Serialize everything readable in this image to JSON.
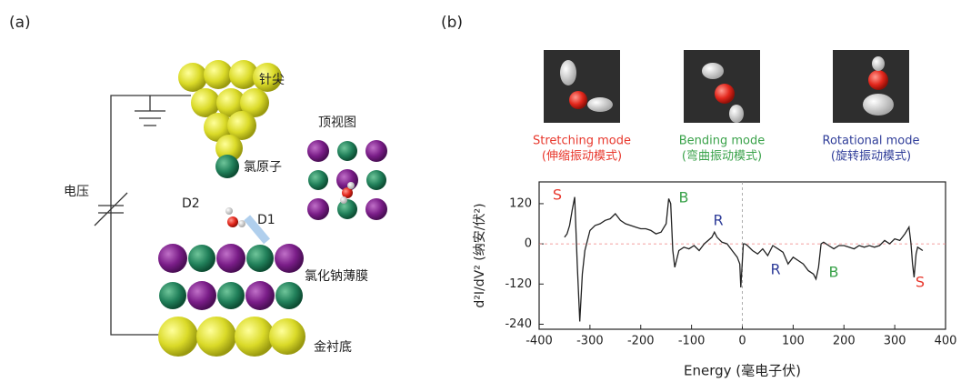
{
  "panel_a": {
    "label": "(a)",
    "tip": "针尖",
    "top_view": "顶视图",
    "chlorine": "氯原子",
    "voltage": "电压",
    "d2": "D2",
    "d1": "D1",
    "film": "氯化钠薄膜",
    "substrate": "金衬底"
  },
  "panel_b": {
    "label": "(b)",
    "modes": [
      {
        "name": "Stretching mode",
        "cn": "(伸缩振动模式)",
        "color": "#e8372c"
      },
      {
        "name": "Bending mode",
        "cn": "(弯曲振动模式)",
        "color": "#3aa24a"
      },
      {
        "name": "Rotational mode",
        "cn": "(旋转振动模式)",
        "color": "#2f3d99"
      }
    ]
  },
  "chart_data": {
    "type": "line",
    "x_label": "Energy (毫电子伏)",
    "y_label": "d²I/dV² (纳安/伏²)",
    "x": [
      -350,
      -345,
      -340,
      -335,
      -330,
      -325,
      -320,
      -315,
      -310,
      -300,
      -290,
      -280,
      -270,
      -260,
      -250,
      -240,
      -230,
      -220,
      -210,
      -200,
      -190,
      -180,
      -170,
      -160,
      -150,
      -145,
      -141,
      -137,
      -133,
      -125,
      -115,
      -105,
      -95,
      -85,
      -75,
      -60,
      -55,
      -50,
      -40,
      -30,
      -20,
      -10,
      -5,
      -3,
      2,
      5,
      10,
      20,
      30,
      40,
      50,
      55,
      60,
      70,
      80,
      90,
      100,
      110,
      120,
      130,
      140,
      145,
      150,
      155,
      160,
      170,
      180,
      190,
      200,
      210,
      220,
      230,
      240,
      250,
      260,
      270,
      280,
      290,
      300,
      310,
      320,
      328,
      332,
      335,
      338,
      342,
      345,
      350,
      355
    ],
    "values": [
      20,
      30,
      55,
      100,
      140,
      -60,
      -232,
      -90,
      -20,
      40,
      55,
      60,
      70,
      75,
      90,
      70,
      60,
      55,
      50,
      45,
      45,
      40,
      30,
      35,
      60,
      135,
      120,
      -20,
      -70,
      -20,
      -10,
      -15,
      -5,
      -20,
      0,
      20,
      35,
      20,
      5,
      0,
      -20,
      -40,
      -60,
      -130,
      0,
      0,
      -5,
      -20,
      -30,
      -15,
      -35,
      -20,
      -5,
      -15,
      -25,
      -60,
      -40,
      -50,
      -60,
      -80,
      -90,
      -105,
      -70,
      0,
      5,
      -5,
      -15,
      -5,
      -5,
      -10,
      -15,
      -5,
      -10,
      -5,
      -10,
      -5,
      10,
      0,
      15,
      10,
      30,
      50,
      0,
      -60,
      -100,
      -30,
      -10,
      -15,
      -20
    ],
    "color": "#222222",
    "xlim": [
      -400,
      400
    ],
    "ylim": [
      -255,
      185
    ],
    "xticks": [
      -400,
      -300,
      -200,
      -100,
      0,
      100,
      200,
      300,
      400
    ],
    "yticks": [
      120,
      0,
      -120,
      -240
    ],
    "zero_lines": true,
    "annotations": [
      {
        "text": "S",
        "color": "#e8372c"
      },
      {
        "text": "B",
        "color": "#3aa24a"
      },
      {
        "text": "R",
        "color": "#2f3d99"
      },
      {
        "text": "R",
        "color": "#2f3d99"
      },
      {
        "text": "B",
        "color": "#3aa24a"
      },
      {
        "text": "S",
        "color": "#e8372c"
      }
    ]
  }
}
